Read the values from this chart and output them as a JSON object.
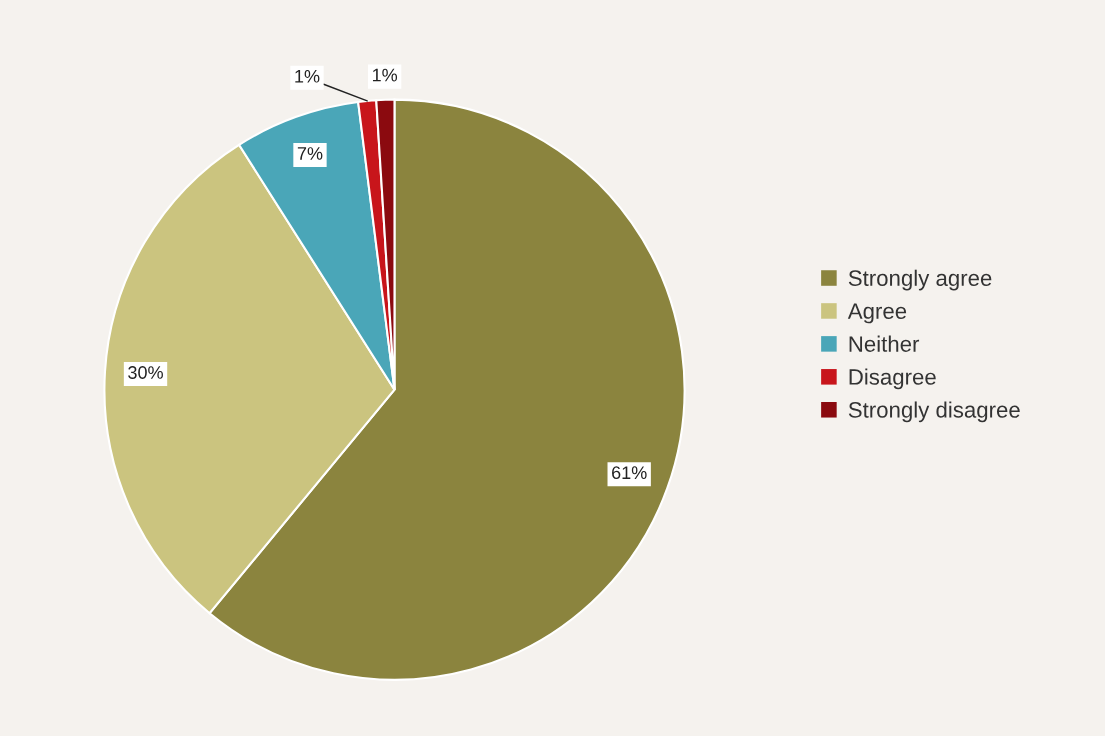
{
  "chart_data": {
    "type": "pie",
    "categories": [
      "Strongly agree",
      "Agree",
      "Neither",
      "Disagree",
      "Strongly disagree"
    ],
    "values": [
      61,
      30,
      7,
      1,
      1
    ],
    "colors": [
      "#8b843e",
      "#cbc47f",
      "#4aa6b8",
      "#c8151b",
      "#8b0a0f"
    ],
    "value_labels": [
      "61%",
      "30%",
      "7%",
      "1%",
      "1%"
    ],
    "legend": "right"
  }
}
